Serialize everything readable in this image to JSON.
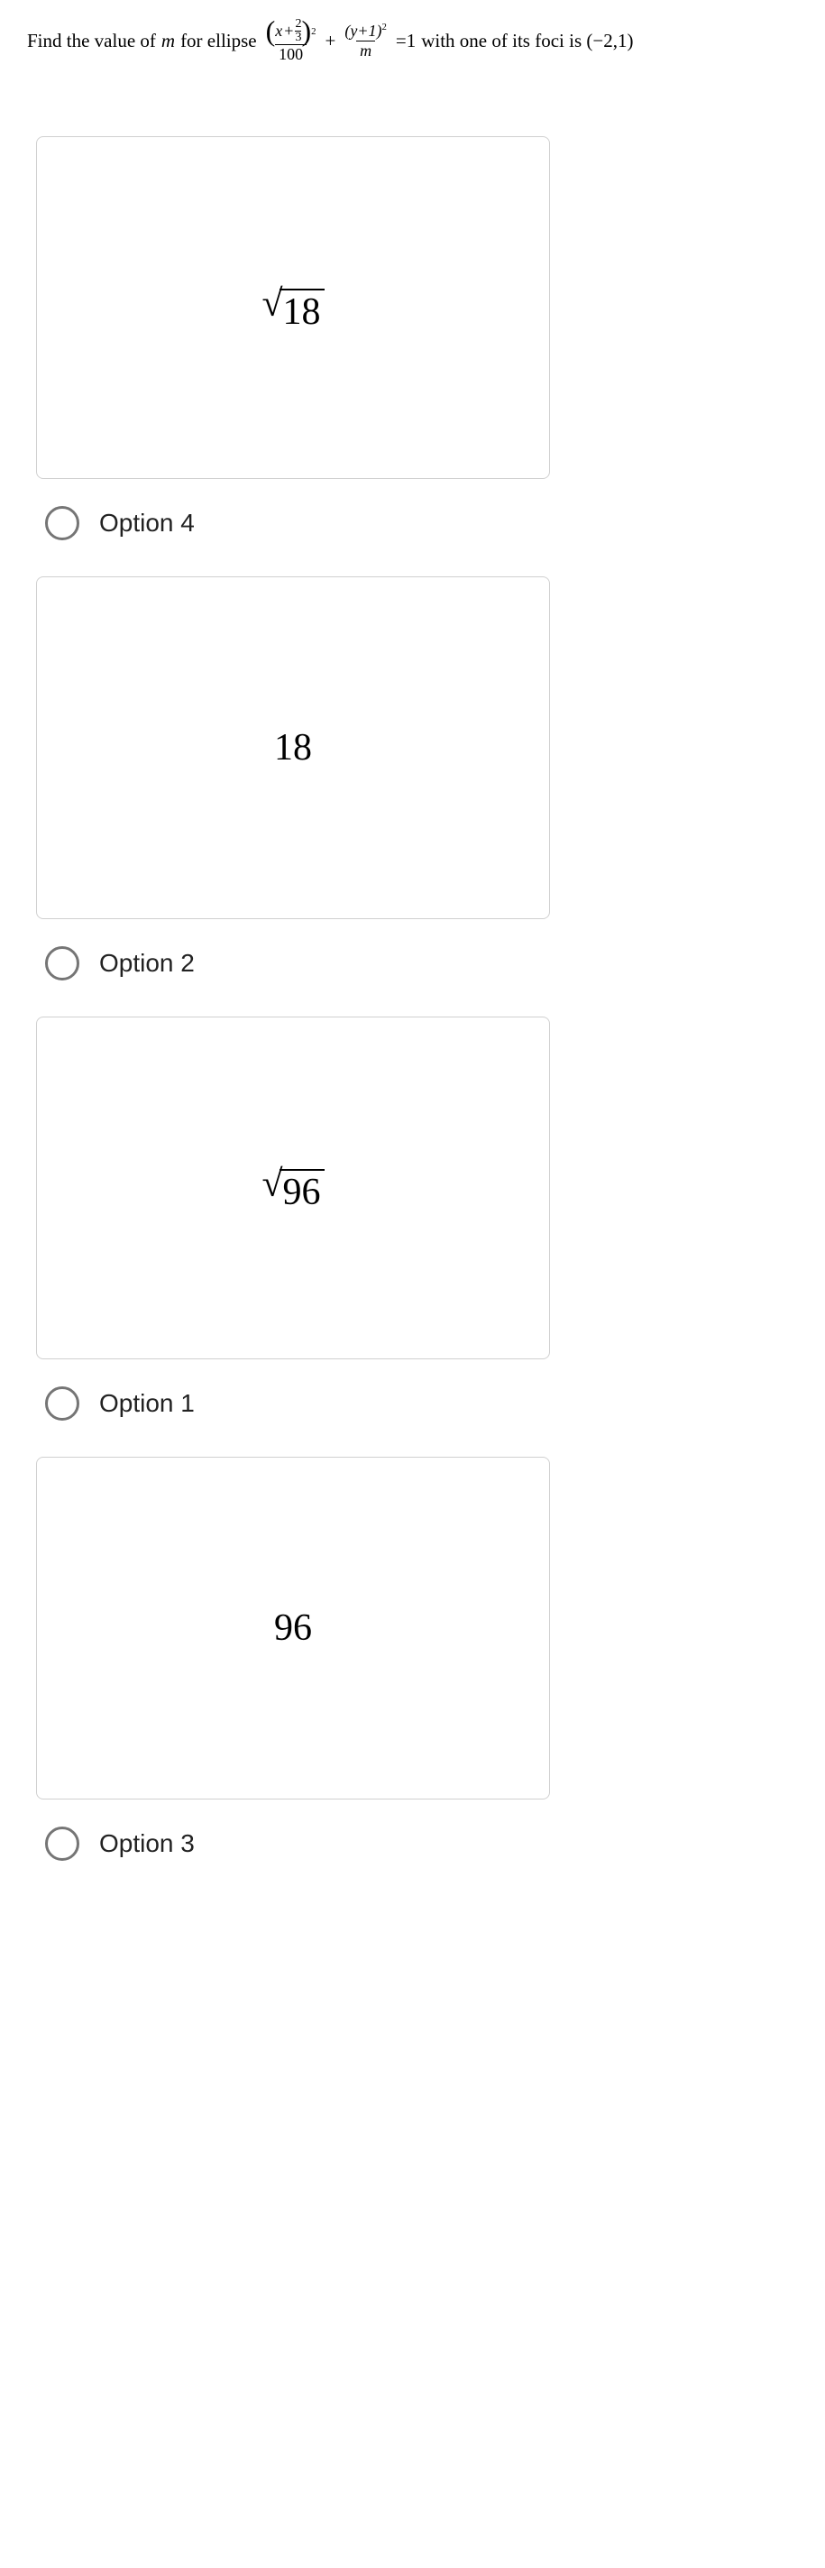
{
  "question": {
    "prefix": "Find the value of ",
    "var_m": "m",
    "middle": " for ellipse ",
    "frac1_num_inner_x": "x",
    "frac1_num_inner_plus": "+",
    "frac1_num_small_num": "2",
    "frac1_num_small_den": "3",
    "frac1_den": "100",
    "plus": "+",
    "frac2_num": "(y+1)",
    "frac2_den": "m",
    "eq": "=1",
    "suffix": " with one of its foci is (−2,1)",
    "exp": "2"
  },
  "options": [
    {
      "display_type": "sqrt",
      "value": "18",
      "label": "Option 4"
    },
    {
      "display_type": "plain",
      "value": "18",
      "label": "Option 2"
    },
    {
      "display_type": "sqrt",
      "value": "96",
      "label": "Option 1"
    },
    {
      "display_type": "plain",
      "value": "96",
      "label": "Option 3"
    }
  ],
  "colors": {
    "text": "#000000",
    "border": "#d0d0d0",
    "radio_border": "#757575",
    "background": "#ffffff"
  }
}
